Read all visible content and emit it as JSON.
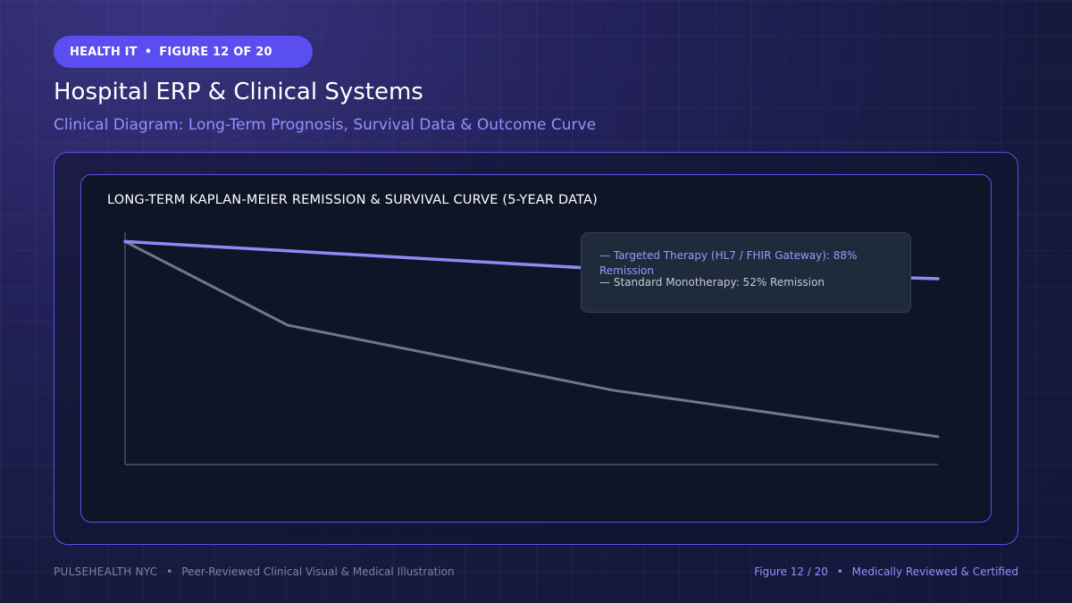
{
  "badge": {
    "category": "HEALTH IT",
    "figure": "FIGURE 12 OF 20"
  },
  "header": {
    "title": "Hospital ERP & Clinical Systems",
    "subtitle": "Clinical Diagram: Long-Term Prognosis, Survival Data & Outcome Curve"
  },
  "chart_data": {
    "type": "line",
    "title": "LONG-TERM KAPLAN-MEIER REMISSION & SURVIVAL CURVE (5-YEAR DATA)",
    "xlabel": "",
    "ylabel": "",
    "x": [
      0,
      1,
      3,
      5
    ],
    "ylim": [
      0,
      100
    ],
    "grid": false,
    "legend_position": "top-right",
    "series": [
      {
        "name": "Targeted Therapy (HL7 / FHIR Gateway): 88% Remission",
        "values": [
          96,
          92,
          84,
          80
        ],
        "color": "#8a8cf5"
      },
      {
        "name": "Standard Monotherapy: 52% Remission",
        "values": [
          96,
          60,
          32,
          12
        ],
        "color": "#6b7a8a"
      }
    ]
  },
  "footer": {
    "brand": "PULSEHEALTH NYC",
    "caption": "Peer-Reviewed Clinical Visual & Medical Illustration",
    "figure_ref": "Figure 12 / 20",
    "certification": "Medically Reviewed & Certified"
  },
  "colors": {
    "accent": "#5a4ef0",
    "panel_border": "#5b52e6",
    "panel_bg": "#0e1527"
  }
}
